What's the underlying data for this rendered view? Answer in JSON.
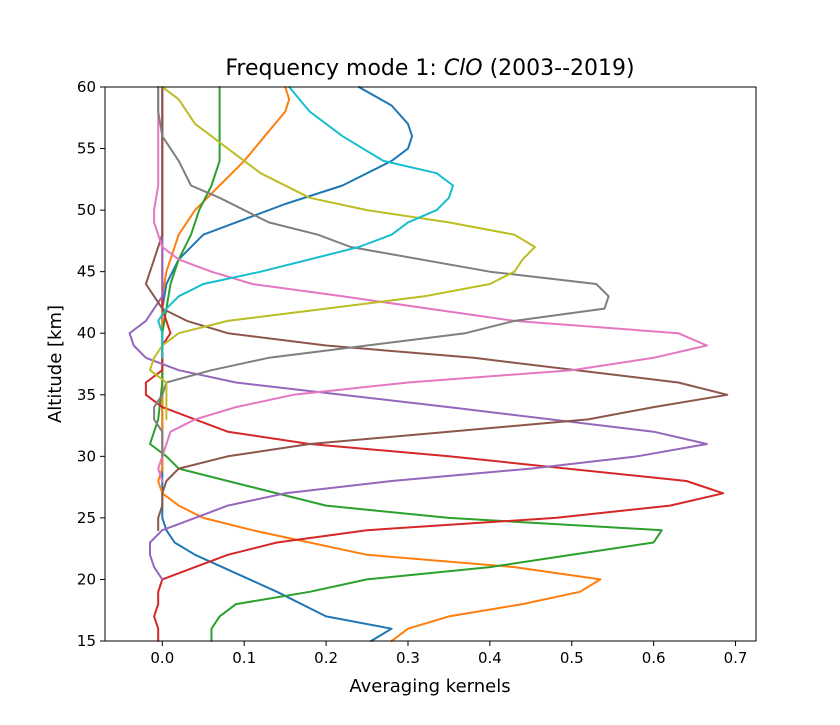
{
  "chart_data": {
    "type": "line",
    "title": "Frequency mode 1: ",
    "title_species": "ClO",
    "title_suffix": " (2003--2019)",
    "xlabel": "Averaging kernels",
    "ylabel": "Altitude [km]",
    "xlim": [
      -0.07,
      0.725
    ],
    "ylim": [
      15,
      60
    ],
    "xticks": [
      0.0,
      0.1,
      0.2,
      0.3,
      0.4,
      0.5,
      0.6,
      0.7
    ],
    "xtick_labels": [
      "0.0",
      "0.1",
      "0.2",
      "0.3",
      "0.4",
      "0.5",
      "0.6",
      "0.7"
    ],
    "yticks": [
      15,
      20,
      25,
      30,
      35,
      40,
      45,
      50,
      55,
      60
    ],
    "ytick_labels": [
      "15",
      "20",
      "25",
      "30",
      "35",
      "40",
      "45",
      "50",
      "55",
      "60"
    ],
    "grid": false,
    "series": [
      {
        "color": "#1f77b4",
        "points": [
          [
            0.255,
            15
          ],
          [
            0.28,
            16
          ],
          [
            0.2,
            17
          ],
          [
            0.14,
            19
          ],
          [
            0.09,
            20.5
          ],
          [
            0.04,
            22
          ],
          [
            0.015,
            23
          ],
          [
            0.005,
            24
          ],
          [
            0.0,
            25
          ],
          [
            0.0,
            27
          ],
          [
            0.0,
            30
          ],
          [
            0.0,
            35
          ],
          [
            0.0,
            40
          ],
          [
            0.0,
            42
          ],
          [
            0.005,
            44
          ],
          [
            0.02,
            46
          ],
          [
            0.05,
            48
          ],
          [
            0.09,
            49
          ],
          [
            0.15,
            50.5
          ],
          [
            0.22,
            52
          ],
          [
            0.28,
            54
          ],
          [
            0.3,
            55
          ],
          [
            0.305,
            56
          ],
          [
            0.3,
            57
          ],
          [
            0.28,
            58.5
          ],
          [
            0.24,
            60
          ]
        ]
      },
      {
        "color": "#ff7f0e",
        "points": [
          [
            0.28,
            15
          ],
          [
            0.3,
            16
          ],
          [
            0.35,
            17
          ],
          [
            0.44,
            18
          ],
          [
            0.51,
            19
          ],
          [
            0.535,
            20
          ],
          [
            0.43,
            21
          ],
          [
            0.25,
            22
          ],
          [
            0.11,
            24
          ],
          [
            0.05,
            25
          ],
          [
            0.02,
            26
          ],
          [
            0.0,
            27
          ],
          [
            -0.005,
            28
          ],
          [
            0.0,
            29
          ],
          [
            0.0,
            32
          ],
          [
            0.0,
            36
          ],
          [
            0.0,
            40
          ],
          [
            0.0,
            43
          ],
          [
            0.005,
            45
          ],
          [
            0.02,
            48
          ],
          [
            0.04,
            50
          ],
          [
            0.07,
            52
          ],
          [
            0.1,
            54
          ],
          [
            0.125,
            56
          ],
          [
            0.15,
            58
          ],
          [
            0.155,
            59
          ],
          [
            0.15,
            60
          ]
        ]
      },
      {
        "color": "#2ca02c",
        "points": [
          [
            0.06,
            15
          ],
          [
            0.06,
            16
          ],
          [
            0.07,
            17
          ],
          [
            0.09,
            18
          ],
          [
            0.18,
            19
          ],
          [
            0.25,
            20
          ],
          [
            0.4,
            21
          ],
          [
            0.5,
            22
          ],
          [
            0.6,
            23
          ],
          [
            0.61,
            24
          ],
          [
            0.35,
            25
          ],
          [
            0.2,
            26
          ],
          [
            0.08,
            28
          ],
          [
            0.02,
            29
          ],
          [
            0.005,
            30
          ],
          [
            -0.015,
            31
          ],
          [
            -0.01,
            32
          ],
          [
            -0.005,
            33
          ],
          [
            0.0,
            36
          ],
          [
            0.0,
            40
          ],
          [
            0.005,
            42
          ],
          [
            0.01,
            44
          ],
          [
            0.02,
            46
          ],
          [
            0.035,
            48
          ],
          [
            0.045,
            50
          ],
          [
            0.06,
            52
          ],
          [
            0.07,
            54
          ],
          [
            0.07,
            56
          ],
          [
            0.07,
            58
          ],
          [
            0.07,
            60
          ]
        ]
      },
      {
        "color": "#d62728",
        "points": [
          [
            -0.005,
            15
          ],
          [
            -0.005,
            16
          ],
          [
            -0.01,
            17
          ],
          [
            -0.005,
            18
          ],
          [
            -0.005,
            19
          ],
          [
            0.0,
            20
          ],
          [
            0.04,
            21
          ],
          [
            0.08,
            22
          ],
          [
            0.14,
            23
          ],
          [
            0.25,
            24
          ],
          [
            0.48,
            25
          ],
          [
            0.62,
            26
          ],
          [
            0.685,
            27
          ],
          [
            0.64,
            28
          ],
          [
            0.35,
            30
          ],
          [
            0.18,
            31
          ],
          [
            0.08,
            32
          ],
          [
            0.04,
            33
          ],
          [
            0.0,
            34
          ],
          [
            -0.02,
            35
          ],
          [
            -0.02,
            36
          ],
          [
            0.0,
            37
          ],
          [
            0.0,
            39
          ],
          [
            0.01,
            40
          ],
          [
            0.005,
            41
          ],
          [
            0.0,
            42
          ],
          [
            0.0,
            44
          ],
          [
            0.0,
            46
          ],
          [
            0.0,
            48
          ],
          [
            0.0,
            50
          ],
          [
            0.0,
            55
          ],
          [
            0.0,
            60
          ]
        ]
      },
      {
        "color": "#9467bd",
        "points": [
          [
            0.0,
            20
          ],
          [
            -0.01,
            21
          ],
          [
            -0.015,
            22
          ],
          [
            -0.015,
            23
          ],
          [
            0.0,
            24
          ],
          [
            0.04,
            25
          ],
          [
            0.08,
            26
          ],
          [
            0.15,
            27
          ],
          [
            0.28,
            28
          ],
          [
            0.45,
            29
          ],
          [
            0.58,
            30
          ],
          [
            0.665,
            31
          ],
          [
            0.6,
            32
          ],
          [
            0.35,
            34
          ],
          [
            0.09,
            36
          ],
          [
            0.02,
            37
          ],
          [
            -0.02,
            38
          ],
          [
            -0.035,
            39
          ],
          [
            -0.04,
            40
          ],
          [
            -0.02,
            41
          ],
          [
            -0.01,
            42
          ],
          [
            0.0,
            43
          ],
          [
            0.0,
            45
          ],
          [
            0.0,
            50
          ],
          [
            0.0,
            55
          ],
          [
            0.0,
            60
          ]
        ]
      },
      {
        "color": "#8c564b",
        "points": [
          [
            -0.005,
            24
          ],
          [
            -0.005,
            25
          ],
          [
            0.0,
            26
          ],
          [
            0.0,
            27
          ],
          [
            0.005,
            28
          ],
          [
            0.02,
            29
          ],
          [
            0.08,
            30
          ],
          [
            0.18,
            31
          ],
          [
            0.35,
            32
          ],
          [
            0.52,
            33
          ],
          [
            0.6,
            34
          ],
          [
            0.69,
            35
          ],
          [
            0.63,
            36
          ],
          [
            0.38,
            38
          ],
          [
            0.2,
            39
          ],
          [
            0.08,
            40
          ],
          [
            0.03,
            41
          ],
          [
            0.0,
            42
          ],
          [
            -0.01,
            43
          ],
          [
            -0.02,
            44
          ],
          [
            -0.015,
            45
          ],
          [
            -0.01,
            46
          ],
          [
            -0.005,
            47
          ],
          [
            0.0,
            48
          ],
          [
            0.0,
            50
          ],
          [
            0.0,
            55
          ],
          [
            0.0,
            60
          ]
        ]
      },
      {
        "color": "#e377c2",
        "points": [
          [
            0.0,
            28
          ],
          [
            -0.005,
            29
          ],
          [
            0.0,
            30
          ],
          [
            0.005,
            31
          ],
          [
            0.01,
            32
          ],
          [
            0.04,
            33
          ],
          [
            0.09,
            34
          ],
          [
            0.16,
            35
          ],
          [
            0.3,
            36
          ],
          [
            0.5,
            37
          ],
          [
            0.6,
            38
          ],
          [
            0.665,
            39
          ],
          [
            0.63,
            40
          ],
          [
            0.43,
            41
          ],
          [
            0.22,
            43
          ],
          [
            0.11,
            44
          ],
          [
            0.06,
            45
          ],
          [
            0.02,
            46
          ],
          [
            0.0,
            47
          ],
          [
            -0.005,
            48
          ],
          [
            -0.01,
            49
          ],
          [
            -0.01,
            50
          ],
          [
            -0.005,
            52
          ],
          [
            -0.005,
            55
          ],
          [
            -0.005,
            58
          ],
          [
            -0.005,
            60
          ]
        ]
      },
      {
        "color": "#7f7f7f",
        "points": [
          [
            0.0,
            30
          ],
          [
            0.0,
            32
          ],
          [
            -0.01,
            33
          ],
          [
            -0.01,
            34
          ],
          [
            0.0,
            35
          ],
          [
            0.005,
            36
          ],
          [
            0.06,
            37
          ],
          [
            0.13,
            38
          ],
          [
            0.25,
            39
          ],
          [
            0.37,
            40
          ],
          [
            0.43,
            41
          ],
          [
            0.54,
            42
          ],
          [
            0.545,
            43
          ],
          [
            0.53,
            44
          ],
          [
            0.4,
            45
          ],
          [
            0.23,
            47
          ],
          [
            0.19,
            48
          ],
          [
            0.13,
            49
          ],
          [
            0.07,
            51
          ],
          [
            0.035,
            52
          ],
          [
            0.02,
            54
          ],
          [
            0.0,
            56
          ],
          [
            -0.005,
            58
          ],
          [
            -0.005,
            60
          ]
        ]
      },
      {
        "color": "#bcbd22",
        "points": [
          [
            0.005,
            33
          ],
          [
            0.005,
            34
          ],
          [
            0.005,
            36
          ],
          [
            -0.015,
            37
          ],
          [
            -0.01,
            38
          ],
          [
            0.0,
            39
          ],
          [
            0.02,
            40
          ],
          [
            0.08,
            41
          ],
          [
            0.2,
            42
          ],
          [
            0.32,
            43
          ],
          [
            0.4,
            44
          ],
          [
            0.43,
            45
          ],
          [
            0.44,
            46
          ],
          [
            0.455,
            47
          ],
          [
            0.43,
            48
          ],
          [
            0.35,
            49
          ],
          [
            0.25,
            50
          ],
          [
            0.18,
            51
          ],
          [
            0.12,
            53
          ],
          [
            0.08,
            55
          ],
          [
            0.06,
            56
          ],
          [
            0.04,
            57
          ],
          [
            0.02,
            59
          ],
          [
            0.0,
            60
          ]
        ]
      },
      {
        "color": "#17becf",
        "points": [
          [
            0.0,
            38
          ],
          [
            0.0,
            40
          ],
          [
            -0.005,
            41
          ],
          [
            0.005,
            42
          ],
          [
            0.02,
            43
          ],
          [
            0.05,
            44
          ],
          [
            0.12,
            45
          ],
          [
            0.18,
            46
          ],
          [
            0.24,
            47
          ],
          [
            0.28,
            48
          ],
          [
            0.3,
            49
          ],
          [
            0.335,
            50
          ],
          [
            0.35,
            51
          ],
          [
            0.355,
            52
          ],
          [
            0.335,
            53
          ],
          [
            0.27,
            54
          ],
          [
            0.22,
            56
          ],
          [
            0.18,
            58
          ],
          [
            0.155,
            60
          ]
        ]
      }
    ]
  }
}
